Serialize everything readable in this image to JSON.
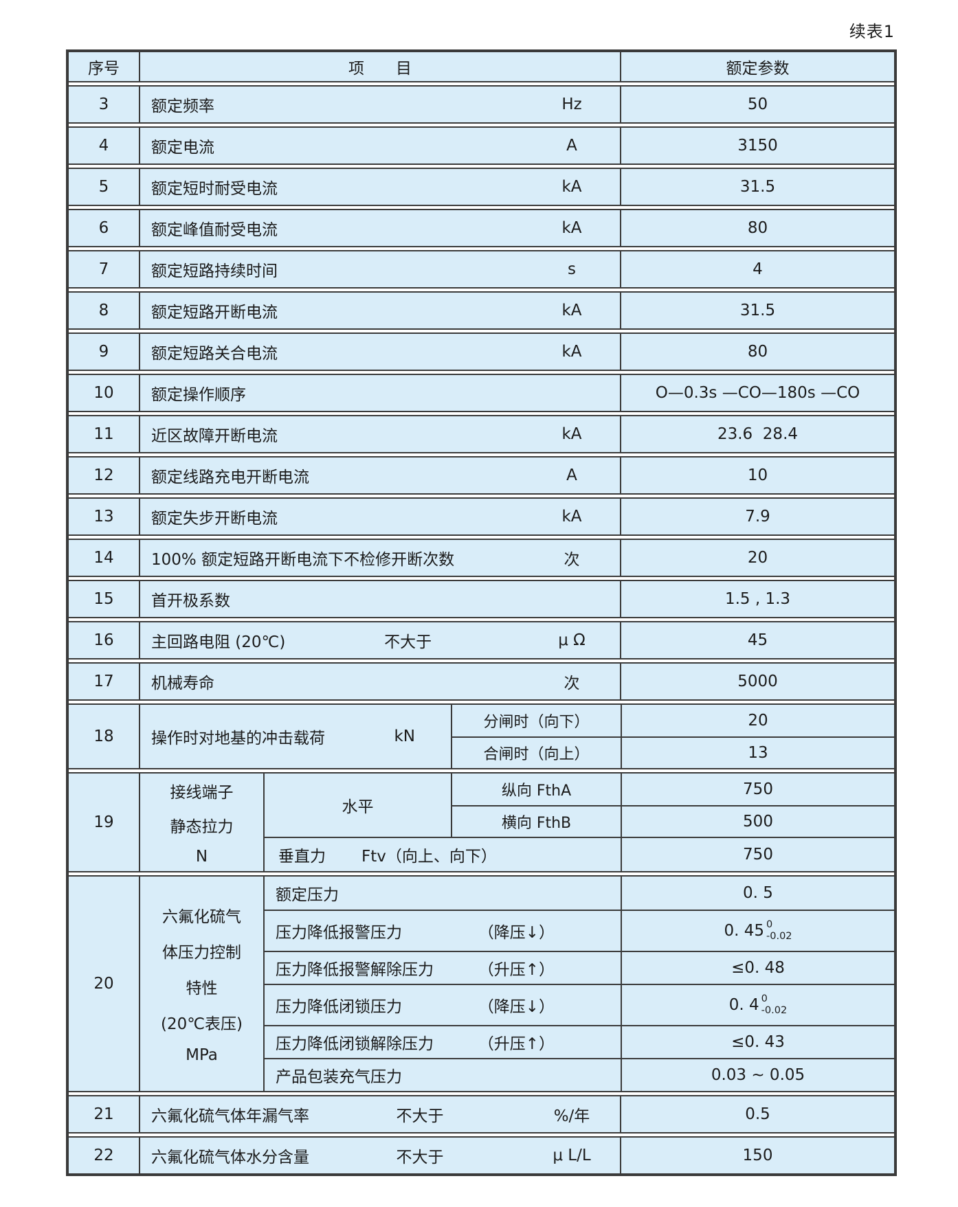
{
  "page": {
    "continuation_label": "续表1"
  },
  "colors": {
    "cell_bg": "#d9edf9",
    "border": "#3a3a3a",
    "page_bg": "#ffffff"
  },
  "table": {
    "header": {
      "no": "序号",
      "item": "项　　目",
      "value": "额定参数"
    },
    "rows_upper": [
      {
        "no": "3",
        "label": "额定频率",
        "mid": "",
        "unit": "Hz",
        "value": "50"
      },
      {
        "no": "4",
        "label": "额定电流",
        "mid": "",
        "unit": "A",
        "value": "3150"
      },
      {
        "no": "5",
        "label": "额定短时耐受电流",
        "mid": "",
        "unit": "kA",
        "value": "31.5"
      },
      {
        "no": "6",
        "label": "额定峰值耐受电流",
        "mid": "",
        "unit": "kA",
        "value": "80"
      },
      {
        "no": "7",
        "label": "额定短路持续时间",
        "mid": "",
        "unit": "s",
        "value": "4"
      },
      {
        "no": "8",
        "label": "额定短路开断电流",
        "mid": "",
        "unit": "kA",
        "value": "31.5"
      },
      {
        "no": "9",
        "label": "额定短路关合电流",
        "mid": "",
        "unit": "kA",
        "value": "80"
      },
      {
        "no": "10",
        "label": "额定操作顺序",
        "mid": "",
        "unit": "",
        "value": "O—0.3s —CO—180s —CO"
      },
      {
        "no": "11",
        "label": "近区故障开断电流",
        "mid": "",
        "unit": "kA",
        "value": "23.6  28.4"
      },
      {
        "no": "12",
        "label": "额定线路充电开断电流",
        "mid": "",
        "unit": "A",
        "value": "10"
      },
      {
        "no": "13",
        "label": "额定失步开断电流",
        "mid": "",
        "unit": "kA",
        "value": "7.9"
      },
      {
        "no": "14",
        "label": "100% 额定短路开断电流下不检修开断次数",
        "mid": "",
        "unit": "次",
        "value": "20"
      },
      {
        "no": "15",
        "label": "首开极系数",
        "mid": "",
        "unit": "",
        "value": "1.5 , 1.3"
      },
      {
        "no": "16",
        "label": "主回路电阻 (20℃)",
        "mid": "不大于",
        "unit": "μ Ω",
        "value": "45"
      },
      {
        "no": "17",
        "label": "机械寿命",
        "mid": "",
        "unit": "次",
        "value": "5000"
      }
    ],
    "row18": {
      "no": "18",
      "label": "操作时对地基的冲击载荷",
      "unit": "kN",
      "subs": [
        {
          "label": "分闸时（向下）",
          "value": "20"
        },
        {
          "label": "合闸时（向上）",
          "value": "13"
        }
      ]
    },
    "row19": {
      "no": "19",
      "label_lines": [
        "接线端子",
        "静态拉力",
        "N"
      ],
      "horizontal": {
        "label": "水平",
        "subs": [
          {
            "label": "纵向 FthA",
            "value": "750"
          },
          {
            "label": "横向 FthB",
            "value": "500"
          }
        ]
      },
      "vertical": {
        "label": "垂直力",
        "formula": "Ftv（向上、向下）",
        "value": "750"
      }
    },
    "row20": {
      "no": "20",
      "label_lines": [
        "六氟化硫气",
        "体压力控制",
        "特性",
        "(20℃表压)",
        "MPa"
      ],
      "items": [
        {
          "label": "额定压力",
          "cond": "",
          "value": {
            "text": "0. 5"
          }
        },
        {
          "label": "压力降低报警压力",
          "cond": "（降压↓）",
          "value": {
            "text": "0. 45",
            "tol_top": "0",
            "tol_bottom": "-0.02"
          }
        },
        {
          "label": "压力降低报警解除压力",
          "cond": "（升压↑）",
          "value": {
            "text": "≤0. 48"
          }
        },
        {
          "label": "压力降低闭锁压力",
          "cond": "（降压↓）",
          "value": {
            "text": "0. 4",
            "tol_top": "0",
            "tol_bottom": "-0.02"
          }
        },
        {
          "label": "压力降低闭锁解除压力",
          "cond": "（升压↑）",
          "value": {
            "text": "≤0. 43"
          }
        },
        {
          "label": "产品包装充气压力",
          "cond": "",
          "value": {
            "text": "0.03 ~ 0.05"
          }
        }
      ]
    },
    "rows_lower": [
      {
        "no": "21",
        "label": "六氟化硫气体年漏气率",
        "mid": "不大于",
        "unit": "%/年",
        "value": "0.5"
      },
      {
        "no": "22",
        "label": "六氟化硫气体水分含量",
        "mid": "不大于",
        "unit": "μ L/L",
        "value": "150"
      }
    ]
  }
}
